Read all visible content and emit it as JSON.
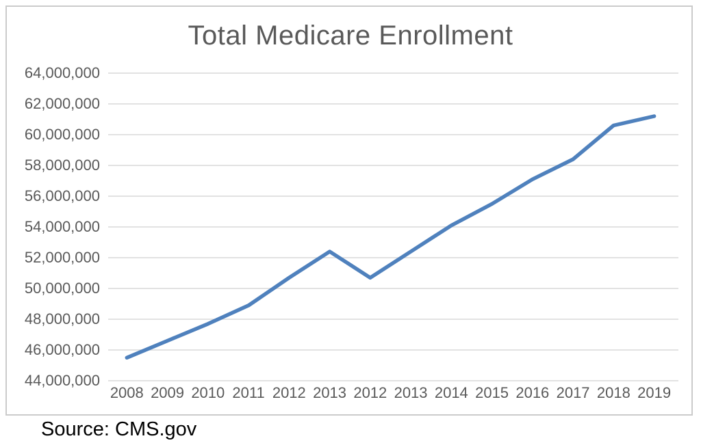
{
  "chart_data": {
    "type": "line",
    "title": "Total Medicare Enrollment",
    "categories": [
      "2008",
      "2009",
      "2010",
      "2011",
      "2012",
      "2013",
      "2012",
      "2013",
      "2014",
      "2015",
      "2016",
      "2017",
      "2018",
      "2019"
    ],
    "series": [
      {
        "name": "Total Medicare Enrollment",
        "values": [
          45500000,
          46600000,
          47700000,
          48900000,
          50700000,
          52400000,
          50700000,
          52400000,
          54100000,
          55500000,
          57100000,
          58400000,
          60600000,
          61200000
        ],
        "color": "#4f81bd"
      }
    ],
    "xlabel": "",
    "ylabel": "",
    "ylim": [
      44000000,
      64000000
    ],
    "y_tick_step": 2000000,
    "y_tick_labels": [
      "64,000,000",
      "62,000,000",
      "60,000,000",
      "58,000,000",
      "56,000,000",
      "54,000,000",
      "52,000,000",
      "50,000,000",
      "48,000,000",
      "46,000,000",
      "44,000,000"
    ],
    "grid": "horizontal",
    "gridline_color": "#d9d9d9",
    "axis_text_color": "#595959",
    "title_color": "#595959",
    "legend": "none"
  },
  "source": {
    "text": "Source: CMS.gov"
  }
}
